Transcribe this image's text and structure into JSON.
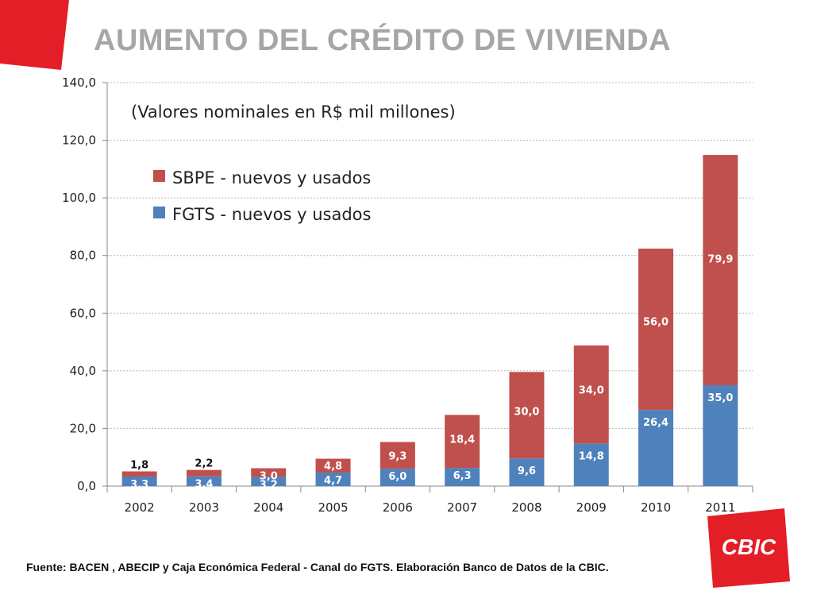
{
  "page": {
    "title": "AUMENTO DEL CRÉDITO DE VIVIENDA",
    "source": "Fuente: BACEN ,  ABECIP y Caja Económica Federal - Canal do FGTS. Elaboración Banco de Datos de la CBIC.",
    "logo_text": "CBIC",
    "accent_color": "#e31e26"
  },
  "chart_data": {
    "type": "bar",
    "stacked": true,
    "subtitle": "(Valores nominales en R$ mil millones)",
    "categories": [
      "2002",
      "2003",
      "2004",
      "2005",
      "2006",
      "2007",
      "2008",
      "2009",
      "2010",
      "2011"
    ],
    "series": [
      {
        "name": "FGTS - nuevos y usados",
        "color": "#4f81bd",
        "values": [
          3.3,
          3.4,
          3.2,
          4.7,
          6.0,
          6.3,
          9.6,
          14.8,
          26.4,
          35.0
        ],
        "labels": [
          "3,3",
          "3,4",
          "3,2",
          "4,7",
          "6,0",
          "6,3",
          "9,6",
          "14,8",
          "26,4",
          "35,0"
        ]
      },
      {
        "name": "SBPE - nuevos y usados",
        "color": "#c0504d",
        "values": [
          1.8,
          2.2,
          3.0,
          4.8,
          9.3,
          18.4,
          30.0,
          34.0,
          56.0,
          79.9
        ],
        "labels": [
          "1,8",
          "2,2",
          "3,0",
          "4,8",
          "9,3",
          "18,4",
          "30,0",
          "34,0",
          "56,0",
          "79,9"
        ]
      }
    ],
    "ylim": [
      0,
      140
    ],
    "yticks": [
      0,
      20,
      40,
      60,
      80,
      100,
      120,
      140
    ],
    "ytick_labels": [
      "0,0",
      "20,0",
      "40,0",
      "60,0",
      "80,0",
      "100,0",
      "120,0",
      "140,0"
    ],
    "grid": true,
    "legend_placement": "top-left",
    "xlabel": "",
    "ylabel": ""
  }
}
